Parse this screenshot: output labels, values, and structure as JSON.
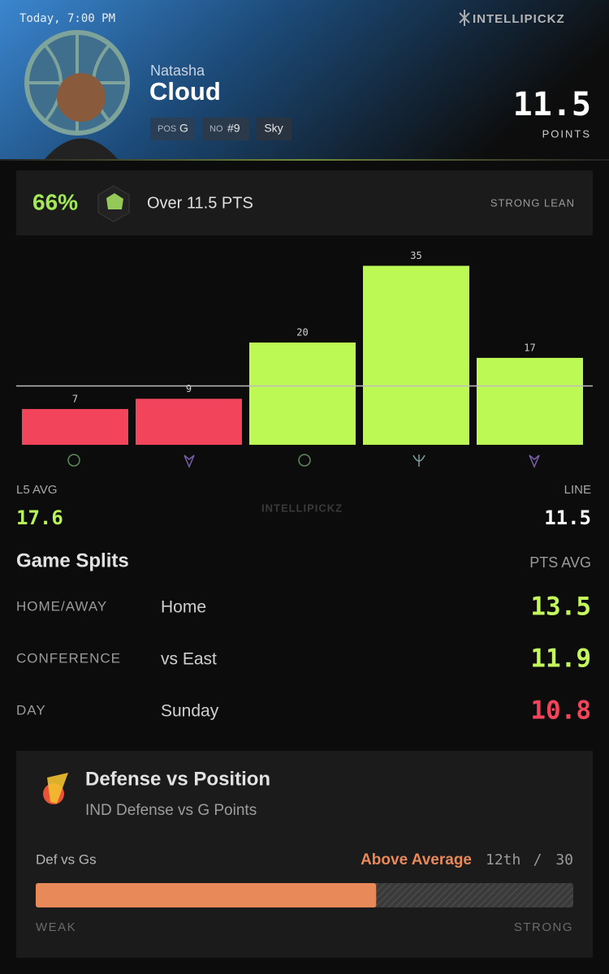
{
  "header": {
    "time": "Today, 7:00 PM",
    "brand": "INTELLIPICKZ",
    "first_name": "Natasha",
    "last_name": "Cloud",
    "pos_label": "POS",
    "pos": "G",
    "no_label": "NO",
    "number": "#9",
    "team": "Sky",
    "line": "11.5",
    "stat": "POINTS"
  },
  "prediction": {
    "percent": "66%",
    "pick": "Over 11.5 PTS",
    "strength": "STRONG LEAN"
  },
  "chart_data": {
    "type": "bar",
    "categories": [
      null,
      null,
      null,
      null,
      null
    ],
    "values": [
      7,
      9,
      20,
      35,
      17
    ],
    "colors": [
      "#f2455c",
      "#f2455c",
      "#bdf955",
      "#bdf955",
      "#bdf955"
    ],
    "threshold": 11.5
  },
  "summary": {
    "avg_label": "L5 AVG",
    "avg": "17.6",
    "watermark": "INTELLIPICKZ",
    "line_label": "LINE",
    "line": "11.5"
  },
  "splits": {
    "title": "Game Splits",
    "column": "PTS AVG",
    "rows": [
      {
        "label": "HOME/AWAY",
        "value": "Home",
        "avg": "13.5",
        "color": "#c3f95c"
      },
      {
        "label": "CONFERENCE",
        "value": "vs East",
        "avg": "11.9",
        "color": "#c3f95c"
      },
      {
        "label": "DAY",
        "value": "Sunday",
        "avg": "10.8",
        "color": "#f2455c"
      }
    ]
  },
  "defense": {
    "title": "Defense vs Position",
    "subtitle": "IND Defense vs G Points",
    "metric": "Def vs Gs",
    "rating": "Above Average",
    "rank": {
      "value": 12,
      "label": "12th"
    },
    "separator": "/",
    "total": 30,
    "low": "WEAK",
    "high": "STRONG"
  }
}
